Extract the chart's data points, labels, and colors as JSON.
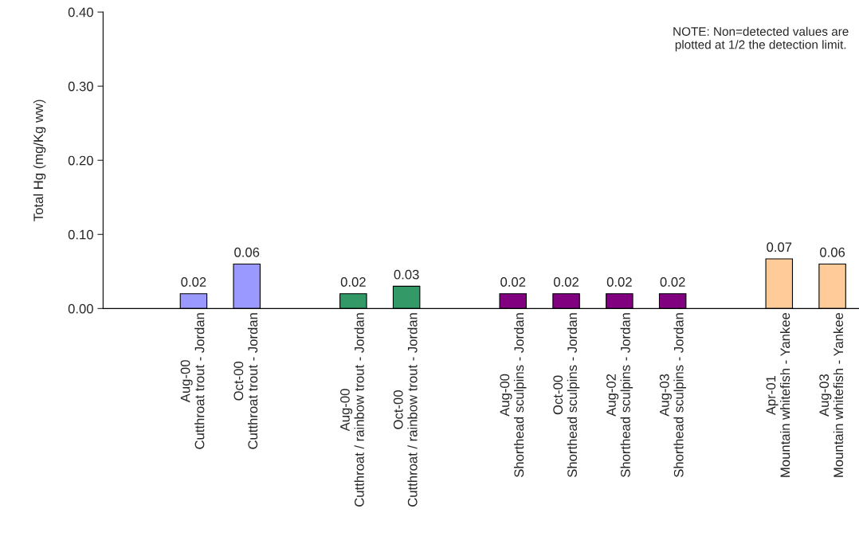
{
  "chart_data": {
    "type": "bar",
    "ylabel": "Total Hg (mg/Kg ww)",
    "categories": [
      "Aug-00\nCutthroat trout - Jordan",
      "Oct-00\nCutthroat trout - Jordan",
      null,
      "Aug-00\nCutthroat / rainbow trout - Jordan",
      "Oct-00\nCutthroat / rainbow trout - Jordan",
      null,
      "Aug-00\nShorthead sculpins - Jordan",
      "Oct-00\nShorthead sculpins - Jordan",
      "Aug-02\nShorthead sculpins - Jordan",
      "Aug-03\nShorthead sculpins - Jordan",
      null,
      "Apr-01\nMountain whitefish - Yankee",
      "Aug-03\nMountain whitefish - Yankee"
    ],
    "values": [
      0.02,
      0.06,
      null,
      0.02,
      0.03,
      null,
      0.02,
      0.02,
      0.02,
      0.02,
      null,
      0.067,
      0.06
    ],
    "value_labels": [
      "0.02",
      "0.06",
      null,
      "0.02",
      "0.03",
      null,
      "0.02",
      "0.02",
      "0.02",
      "0.02",
      null,
      "0.07",
      "0.06"
    ],
    "colors": [
      "#9999ff",
      "#9999ff",
      null,
      "#339966",
      "#339966",
      null,
      "#800080",
      "#800080",
      "#800080",
      "#800080",
      null,
      "#ffcc99",
      "#ffcc99"
    ],
    "ylim": [
      0,
      0.4
    ],
    "yticks": [
      {
        "value": 0,
        "label": "0.00"
      },
      {
        "value": 0.1,
        "label": "0.10"
      },
      {
        "value": 0.2,
        "label": "0.20"
      },
      {
        "value": 0.3,
        "label": "0.30"
      },
      {
        "value": 0.4,
        "label": "0.40"
      }
    ],
    "grid": false,
    "annotations": [
      "NOTE: Non=detected values are\nplotted at 1/2 the detection limit."
    ]
  }
}
